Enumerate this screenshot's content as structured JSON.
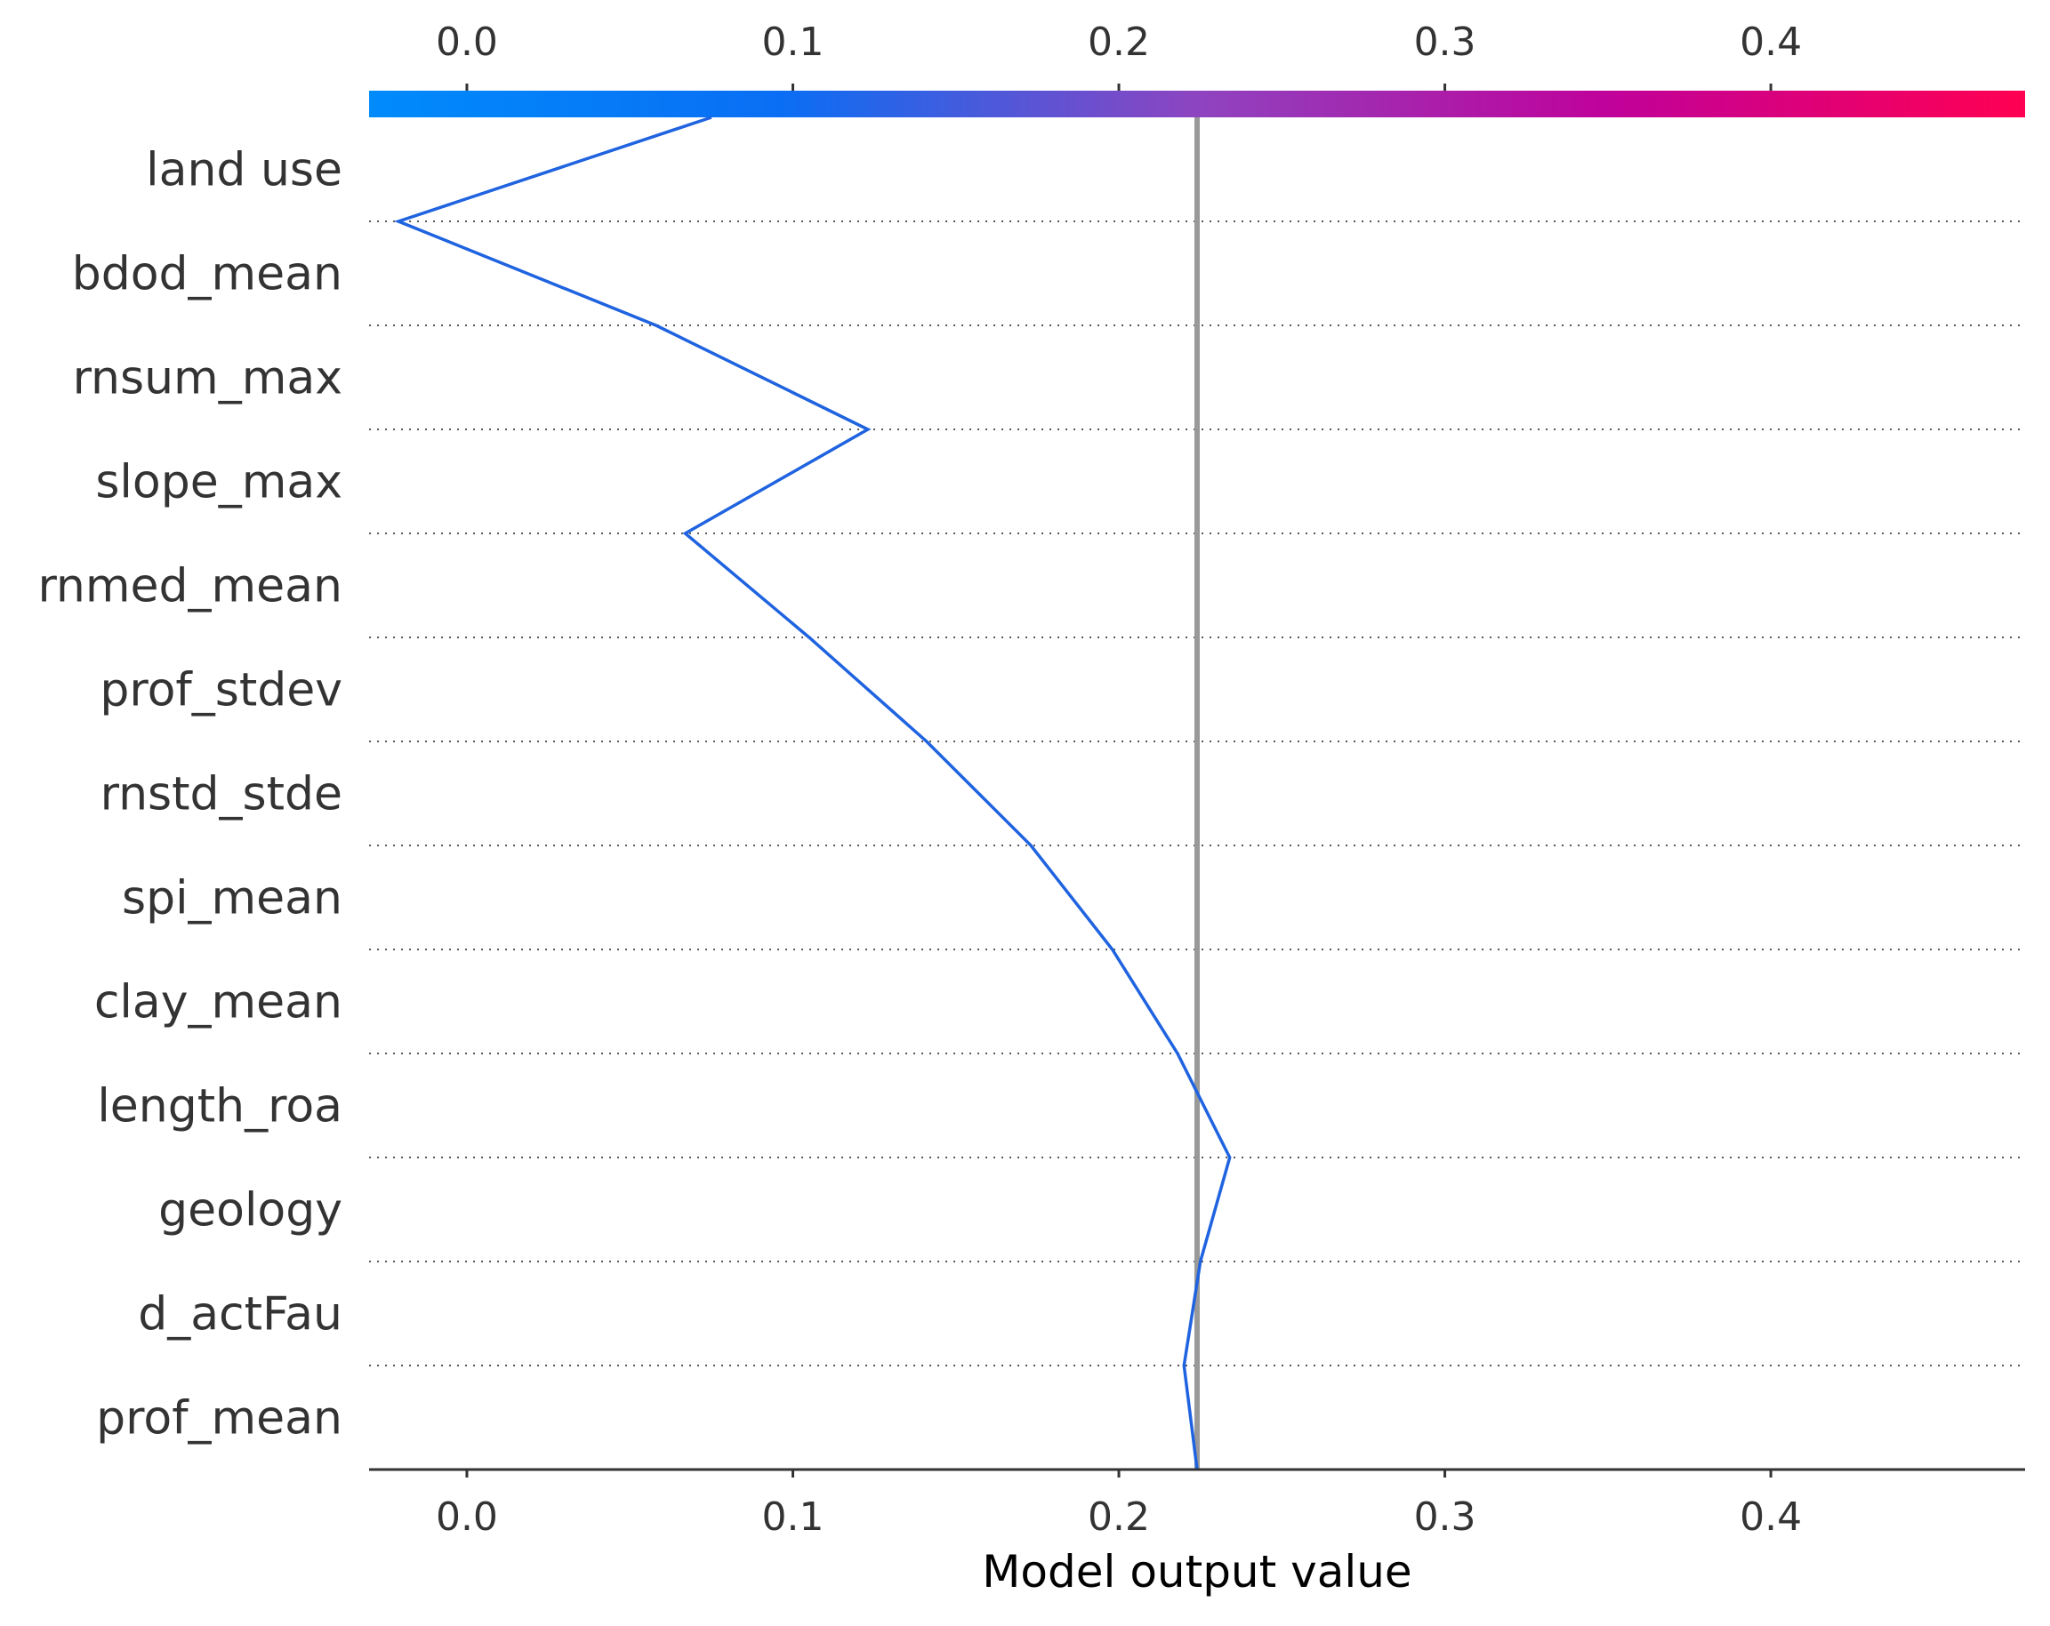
{
  "chart_data": {
    "type": "line",
    "subtype": "shap-decision-plot",
    "title": "",
    "xlabel": "Model output value",
    "ylabel": "",
    "xlim": [
      -0.03,
      0.478
    ],
    "xticks": [
      0.0,
      0.1,
      0.2,
      0.3,
      0.4
    ],
    "xtick_labels": [
      "0.0",
      "0.1",
      "0.2",
      "0.3",
      "0.4"
    ],
    "base_value": 0.224,
    "features": [
      "land use",
      "bdod_mean",
      "rnsum_max",
      "slope_max",
      "rnmed_mean",
      "prof_stdev",
      "rnstd_stde",
      "spi_mean",
      "clay_mean",
      "length_roa",
      "geology",
      "d_actFau",
      "prof_mean"
    ],
    "cumulative_values": [
      0.224,
      0.22,
      0.225,
      0.234,
      0.218,
      0.198,
      0.173,
      0.141,
      0.105,
      0.067,
      0.123,
      0.058,
      -0.021,
      0.075
    ],
    "line_color": "#1f63e0",
    "base_line_color": "#999999",
    "colorbar_colors": [
      "#008bfb",
      "#0a6ef4",
      "#8e44c0",
      "#c0019a",
      "#ff0052"
    ],
    "grid_style": "dotted"
  }
}
